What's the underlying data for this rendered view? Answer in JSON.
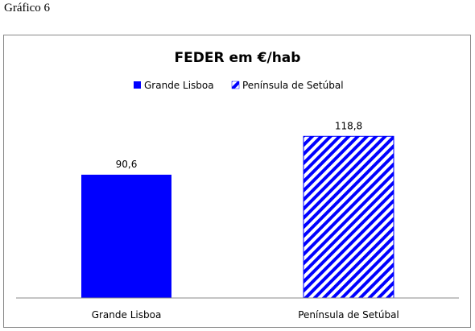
{
  "caption": "Gráfico 6",
  "chart_data": {
    "type": "bar",
    "title": "FEDER em €/hab",
    "categories": [
      "Grande Lisboa",
      "Península de Setúbal"
    ],
    "values": [
      90.6,
      118.8
    ],
    "value_labels": [
      "90,6",
      "118,8"
    ],
    "legend": [
      "Grande Lisboa",
      "Península de Setúbal"
    ],
    "legend_position": "top",
    "fills": [
      "solid",
      "diagonal-stripes"
    ],
    "colors": {
      "bar": "#0000ff",
      "stripe_bg": "#ffffff",
      "axis": "#888888"
    },
    "ylim": [
      0,
      145
    ],
    "grid": false,
    "xlabel": "",
    "ylabel": ""
  }
}
